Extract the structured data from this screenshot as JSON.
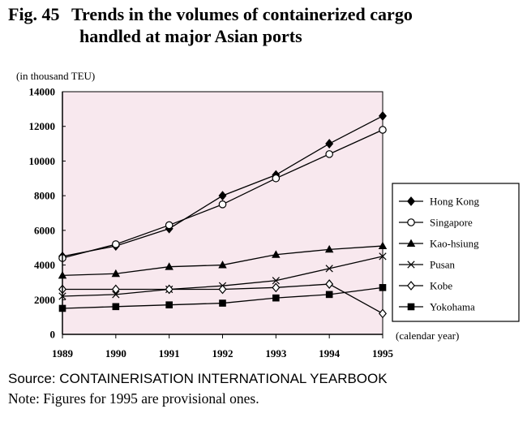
{
  "figure": {
    "number": "Fig. 45",
    "title_line1": "Trends in the volumes of containerized cargo",
    "title_line2": "handled at major Asian ports"
  },
  "footer": {
    "source": "Source: CONTAINERISATION INTERNATIONAL YEARBOOK",
    "note": "Note: Figures for 1995 are provisional ones."
  },
  "colors": {
    "plot_background": "#f8e8ee",
    "lines": "#000000"
  },
  "chart_data": {
    "type": "line",
    "title": "Trends in the volumes of containerized cargo handled at major Asian ports",
    "ylabel": "(in thousand TEU)",
    "xlabel": "(calendar year)",
    "x": [
      "1989",
      "1990",
      "1991",
      "1992",
      "1993",
      "1994",
      "1995"
    ],
    "ylim": [
      0,
      14000
    ],
    "yticks": [
      "0",
      "2000",
      "4000",
      "6000",
      "8000",
      "10000",
      "12000",
      "14000"
    ],
    "grid": false,
    "legend_position": "right",
    "series": [
      {
        "name": "Hong Kong",
        "marker": "filled-diamond",
        "values": [
          4500,
          5100,
          6100,
          8000,
          9200,
          11000,
          12600
        ]
      },
      {
        "name": "Singapore",
        "marker": "open-circle",
        "values": [
          4400,
          5200,
          6300,
          7500,
          9000,
          10400,
          11800
        ]
      },
      {
        "name": "Kao-hsiung",
        "marker": "filled-triangle",
        "values": [
          3400,
          3500,
          3900,
          4000,
          4600,
          4900,
          5100
        ]
      },
      {
        "name": "Pusan",
        "marker": "cross",
        "values": [
          2200,
          2300,
          2600,
          2800,
          3100,
          3800,
          4500
        ]
      },
      {
        "name": "Kobe",
        "marker": "open-diamond",
        "values": [
          2600,
          2600,
          2600,
          2600,
          2700,
          2900,
          1200
        ]
      },
      {
        "name": "Yokohama",
        "marker": "filled-square",
        "values": [
          1500,
          1600,
          1700,
          1800,
          2100,
          2300,
          2700
        ]
      }
    ]
  }
}
